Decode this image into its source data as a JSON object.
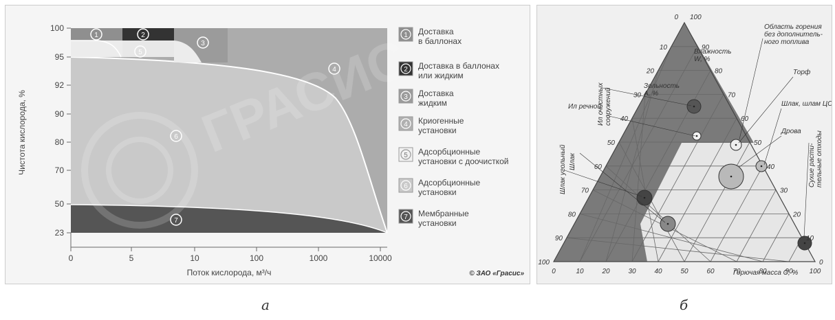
{
  "panel_a": {
    "y_axis_label": "Чистота кислорода, %",
    "x_axis_label": "Поток кислорода, м³/ч",
    "y_ticks": [
      "100",
      "95",
      "92",
      "90",
      "80",
      "70",
      "50",
      "23"
    ],
    "x_ticks": [
      "0",
      "5",
      "10",
      "100",
      "1000",
      "10000"
    ],
    "watermark": "ГРАСИС",
    "copyright": "© ЗАО «Грасис»",
    "region_markers": [
      "1",
      "2",
      "3",
      "4",
      "5",
      "6",
      "7"
    ],
    "legend": [
      {
        "num": "1",
        "text": "Доставка\nв баллонах",
        "color": "#8f8f8f"
      },
      {
        "num": "2",
        "text": "Доставка в баллонах\nили жидким",
        "color": "#333333"
      },
      {
        "num": "3",
        "text": "Доставка\nжидким",
        "color": "#9b9b9b"
      },
      {
        "num": "4",
        "text": "Криогенные\nустановки",
        "color": "#b0b0b0"
      },
      {
        "num": "5",
        "text": "Адсорбционные\nустановки с доочисткой",
        "color": "#f2f2f2"
      },
      {
        "num": "6",
        "text": "Адсорбционные\nустановки",
        "color": "#c9c9c9"
      },
      {
        "num": "7",
        "text": "Мембранные\nустановки",
        "color": "#555555"
      }
    ]
  },
  "panel_b": {
    "corner_top": [
      "0",
      "100"
    ],
    "left_axis_ticks": [
      "10",
      "20",
      "30",
      "40",
      "50",
      "60",
      "70",
      "80",
      "90",
      "100"
    ],
    "right_axis_ticks": [
      "90",
      "80",
      "70",
      "60",
      "50",
      "40",
      "30",
      "20",
      "10",
      "0"
    ],
    "bottom_axis_ticks": [
      "0",
      "10",
      "20",
      "30",
      "40",
      "50",
      "60",
      "70",
      "80",
      "90",
      "100"
    ],
    "axis_ash": "Зольность\nA, %",
    "axis_moisture": "Влажность\nW, %",
    "axis_combustible": "Горючая масса С, %",
    "annotations": {
      "combustion_area": "Область горения\nбез дополнитель-\nного топлива",
      "peat": "Торф",
      "slag_sludge": "Шлак, шлам ЦОФ",
      "firewood": "Дрова",
      "dry_plant_waste": "Сухие расти-\nтельные отходы",
      "sewage_sludge": "Ил очистных\nсооружений",
      "river_silt": "Ил речной",
      "coal_slag": "Шлак угольный",
      "slag": "Шлак"
    }
  },
  "captions": {
    "a": "а",
    "b": "б"
  }
}
